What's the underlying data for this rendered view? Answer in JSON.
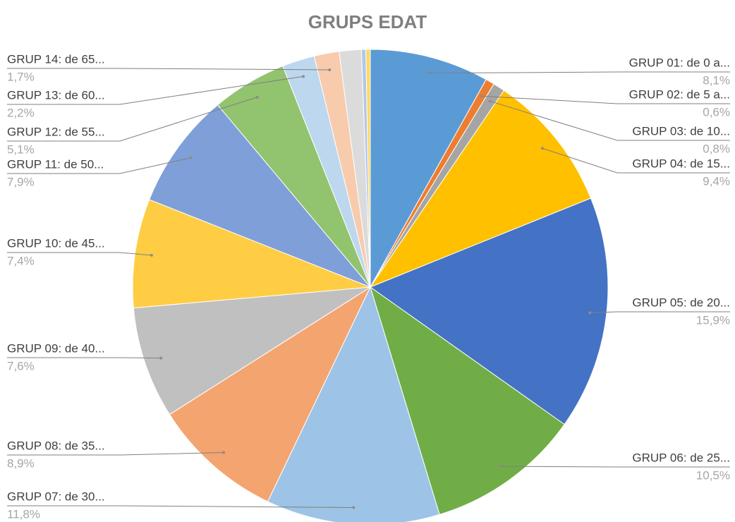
{
  "chart_data": {
    "type": "pie",
    "title": "GRUPS EDAT",
    "categories": [
      "GRUP 01: de 0 a...",
      "GRUP 02: de 5 a...",
      "GRUP 03: de 10...",
      "GRUP 04: de 15...",
      "GRUP 05: de 20...",
      "GRUP 06: de 25...",
      "GRUP 07: de 30...",
      "GRUP 08: de 35...",
      "GRUP 09: de 40...",
      "GRUP 10: de 45...",
      "GRUP 11: de 50...",
      "GRUP 12: de 55...",
      "GRUP 13: de 60...",
      "GRUP 14: de 65...",
      null,
      null,
      null
    ],
    "values": [
      8.1,
      0.6,
      0.8,
      9.4,
      15.9,
      10.5,
      11.8,
      8.9,
      7.6,
      7.4,
      7.9,
      5.1,
      2.2,
      1.7,
      1.5,
      0.3,
      0.3
    ],
    "value_labels": [
      "8,1%",
      "0,6%",
      "0,8%",
      "9,4%",
      "15,9%",
      "10,5%",
      "11,8%",
      "8,9%",
      "7,6%",
      "7,4%",
      "7,9%",
      "5,1%",
      "2,2%",
      "1,7%",
      null,
      null,
      null
    ],
    "colors": [
      "#5b9bd5",
      "#ed7d31",
      "#a5a5a5",
      "#ffc000",
      "#4472c4",
      "#70ad47",
      "#9dc3e6",
      "#f4a46f",
      "#c0c0c0",
      "#ffcd43",
      "#7f9fd8",
      "#92c36e",
      "#bdd7ee",
      "#f8cbad",
      "#dbdbdb",
      "#b4c7e7",
      "#ffd966"
    ]
  }
}
